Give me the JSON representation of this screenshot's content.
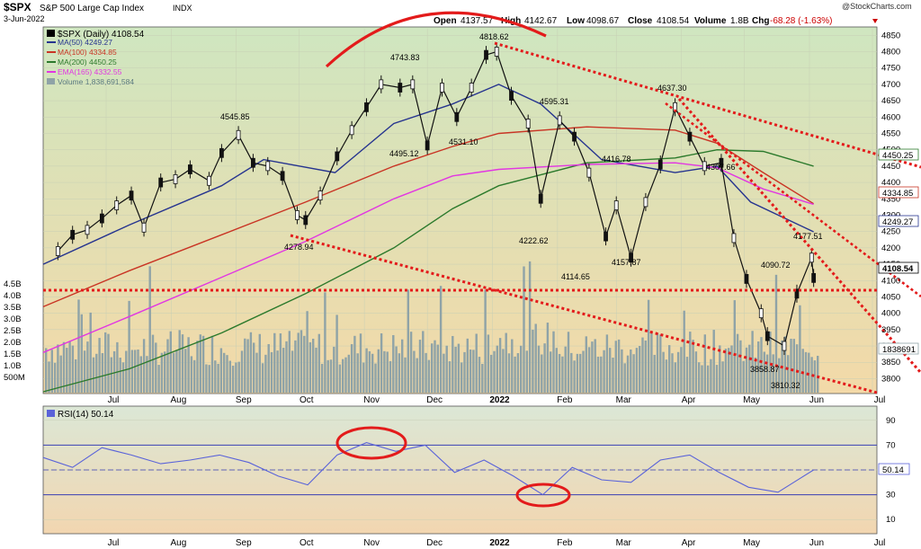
{
  "header": {
    "symbol": "$SPX",
    "name": "S&P 500 Large Cap Index",
    "exchange": "INDX",
    "date": "3-Jun-2022",
    "open_label": "Open",
    "open": "4137.57",
    "high_label": "High",
    "high": "4142.67",
    "low_label": "Low",
    "low": "4098.67",
    "close_label": "Close",
    "close": "4108.54",
    "volume_label": "Volume",
    "volume": "1.8B",
    "chg_label": "Chg",
    "chg": "-68.28 (-1.63%)",
    "watermark": "@StockCharts.com"
  },
  "legend": {
    "price": "$SPX (Daily) 4108.54",
    "ma50": "MA(50) 4249.27",
    "ma100": "MA(100) 4334.85",
    "ma200": "MA(200) 4450.25",
    "ema165": "EMA(165) 4332.55",
    "volume": "Volume 1,838,691,584"
  },
  "rsi_legend": "RSI(14) 50.14",
  "colors": {
    "price_bg_top": "#cfe6c0",
    "price_bg_bottom": "#f3d9a8",
    "rsi_bg_top": "#dbe7d6",
    "rsi_bg_bottom": "#f2d6b0",
    "ma50": "#26348f",
    "ma100": "#c93424",
    "ma200": "#2c7a2c",
    "ema165": "#e236e2",
    "volume": "#8fa3a7",
    "rsi": "#5a63d9",
    "annotation": "#e31b1b"
  },
  "chart_data": [
    {
      "type": "line",
      "title": "$SPX S&P 500 Large Cap Index INDX",
      "x_axis_labels": [
        "Jul",
        "Aug",
        "Sep",
        "Oct",
        "Nov",
        "Dec",
        "2022",
        "Feb",
        "Mar",
        "Apr",
        "May",
        "Jun",
        "Jul"
      ],
      "y_ticks": [
        3800,
        3850,
        3900,
        3950,
        4000,
        4050,
        4100,
        4150,
        4200,
        4250,
        4300,
        4350,
        4400,
        4450,
        4500,
        4550,
        4600,
        4650,
        4700,
        4750,
        4800,
        4850
      ],
      "ylim": [
        3760,
        4870
      ],
      "price_labels": [
        "4545.85",
        "4278.94",
        "4743.83",
        "4495.12",
        "4531.10",
        "4818.62",
        "4595.31",
        "4222.62",
        "4416.78",
        "4114.65",
        "4157.87",
        "4637.30",
        "4307.66",
        "4090.72",
        "4177.51",
        "3858.87",
        "3810.32"
      ],
      "right_value_tags": [
        "4450.25",
        "4334.85",
        "4249.27",
        "4108.54"
      ],
      "volume_axis_labels": [
        "4.5B",
        "4.0B",
        "3.5B",
        "3.0B",
        "2.5B",
        "2.0B",
        "1.5B",
        "1.0B",
        "500M"
      ],
      "volume_tag": "1838691",
      "series": [
        {
          "name": "$SPX (Daily)",
          "dates": [
            "2021-06-08",
            "2021-06-15",
            "2021-06-22",
            "2021-06-29",
            "2021-07-06",
            "2021-07-13",
            "2021-07-19",
            "2021-07-27",
            "2021-08-03",
            "2021-08-10",
            "2021-08-19",
            "2021-08-25",
            "2021-09-02",
            "2021-09-09",
            "2021-09-16",
            "2021-09-23",
            "2021-09-30",
            "2021-10-04",
            "2021-10-11",
            "2021-10-19",
            "2021-10-26",
            "2021-11-02",
            "2021-11-09",
            "2021-11-18",
            "2021-11-24",
            "2021-12-01",
            "2021-12-08",
            "2021-12-15",
            "2021-12-22",
            "2021-12-29",
            "2022-01-03",
            "2022-01-10",
            "2022-01-18",
            "2022-01-24",
            "2022-02-02",
            "2022-02-09",
            "2022-02-16",
            "2022-02-24",
            "2022-03-01",
            "2022-03-08",
            "2022-03-15",
            "2022-03-22",
            "2022-03-29",
            "2022-04-05",
            "2022-04-12",
            "2022-04-20",
            "2022-04-26",
            "2022-05-02",
            "2022-05-09",
            "2022-05-12",
            "2022-05-20",
            "2022-05-26",
            "2022-06-02",
            "2022-06-03"
          ],
          "values": [
            4190,
            4240,
            4255,
            4290,
            4330,
            4360,
            4262,
            4400,
            4410,
            4440,
            4405,
            4490,
            4545,
            4460,
            4450,
            4420,
            4300,
            4285,
            4360,
            4480,
            4560,
            4630,
            4700,
            4690,
            4700,
            4513,
            4690,
            4600,
            4690,
            4790,
            4800,
            4665,
            4580,
            4350,
            4590,
            4540,
            4430,
            4235,
            4330,
            4170,
            4340,
            4455,
            4630,
            4540,
            4450,
            4460,
            4230,
            4105,
            4000,
            3930,
            3900,
            4060,
            4170,
            4108
          ]
        },
        {
          "name": "MA(50)",
          "dates": [
            "2021-06-01",
            "2021-07-12",
            "2021-08-25",
            "2021-09-14",
            "2021-10-18",
            "2021-11-15",
            "2021-12-13",
            "2022-01-04",
            "2022-01-24",
            "2022-02-22",
            "2022-03-29",
            "2022-04-18",
            "2022-05-04",
            "2022-06-03"
          ],
          "values": [
            4150,
            4270,
            4390,
            4470,
            4430,
            4580,
            4640,
            4700,
            4640,
            4470,
            4430,
            4450,
            4340,
            4249
          ]
        },
        {
          "name": "MA(100)",
          "dates": [
            "2021-06-01",
            "2021-07-12",
            "2021-08-25",
            "2021-10-04",
            "2021-11-15",
            "2021-12-13",
            "2022-01-04",
            "2022-02-15",
            "2022-03-29",
            "2022-04-18",
            "2022-05-10",
            "2022-06-03"
          ],
          "values": [
            4020,
            4130,
            4240,
            4340,
            4450,
            4510,
            4550,
            4570,
            4560,
            4520,
            4430,
            4335
          ]
        },
        {
          "name": "MA(200)",
          "dates": [
            "2021-06-01",
            "2021-07-12",
            "2021-08-25",
            "2021-10-04",
            "2021-11-15",
            "2021-12-13",
            "2022-01-04",
            "2022-02-15",
            "2022-03-29",
            "2022-04-18",
            "2022-05-10",
            "2022-06-03"
          ],
          "values": [
            3760,
            3830,
            3940,
            4060,
            4200,
            4320,
            4390,
            4460,
            4475,
            4500,
            4495,
            4450
          ]
        },
        {
          "name": "EMA(165)",
          "dates": [
            "2021-06-01",
            "2021-07-12",
            "2021-08-25",
            "2021-10-04",
            "2021-11-15",
            "2021-12-13",
            "2022-01-04",
            "2022-02-15",
            "2022-03-29",
            "2022-04-18",
            "2022-05-10",
            "2022-06-03"
          ],
          "values": [
            3880,
            3990,
            4110,
            4220,
            4350,
            4420,
            4440,
            4455,
            4460,
            4445,
            4380,
            4333
          ]
        }
      ]
    },
    {
      "type": "line",
      "title": "RSI(14) 50.14",
      "y_ticks": [
        10,
        30,
        50,
        70,
        90
      ],
      "ylim": [
        0,
        100
      ],
      "right_value_tag": "50.14",
      "series": [
        {
          "name": "RSI(14)",
          "dates": [
            "2021-06-01",
            "2021-06-15",
            "2021-06-29",
            "2021-07-13",
            "2021-07-27",
            "2021-08-10",
            "2021-08-24",
            "2021-09-07",
            "2021-09-21",
            "2021-10-05",
            "2021-10-19",
            "2021-11-02",
            "2021-11-16",
            "2021-11-30",
            "2021-12-14",
            "2021-12-28",
            "2022-01-11",
            "2022-01-25",
            "2022-02-08",
            "2022-02-22",
            "2022-03-08",
            "2022-03-22",
            "2022-04-05",
            "2022-04-19",
            "2022-05-03",
            "2022-05-17",
            "2022-06-03"
          ],
          "values": [
            60,
            52,
            68,
            62,
            55,
            58,
            62,
            56,
            45,
            38,
            62,
            72,
            65,
            70,
            48,
            58,
            45,
            30,
            52,
            42,
            40,
            58,
            62,
            48,
            36,
            32,
            50
          ]
        }
      ]
    }
  ]
}
